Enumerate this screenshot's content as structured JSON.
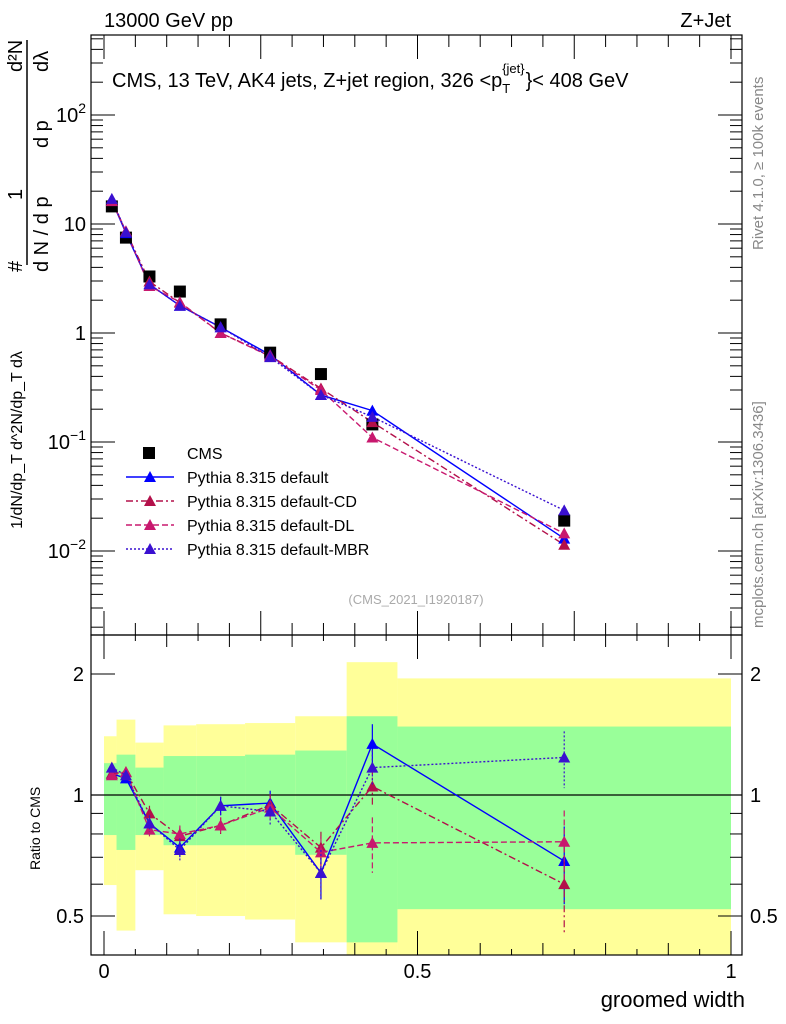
{
  "header": {
    "left": "13000 GeV pp",
    "right": "Z+Jet"
  },
  "side_labels": {
    "rivet": "Rivet 4.1.0, ≥ 100k events",
    "mcplots": "mcplots.cern.ch [arXiv:1306.3436]"
  },
  "analysis_id": "(CMS_2021_I1920187)",
  "chart_data": [
    {
      "type": "line",
      "title": "CMS, 13 TeV, AK4 jets, Z+jet region, 326 < p_T^{jet} < 408 GeV",
      "title_parts": {
        "main": "CMS, 13 TeV, AK4 jets, Z+jet region, 326 <p",
        "sub": "T",
        "sup": "{jet}",
        "tail": "}< 408 GeV"
      },
      "ylabel": "1/dN/dp_T d^2N/dp_T dλ",
      "ylabel_parts": {
        "num": "1",
        "den": "d N / d p",
        "num2": "d²N",
        "den2": "d p",
        "den2b": "dλ",
        "sub": "T",
        "hash": "#"
      },
      "yscale": "log",
      "ylim": [
        0.0017,
        540
      ],
      "xlim": [
        0,
        1
      ],
      "yticks": [
        {
          "v": 0.01,
          "base": "10",
          "exp": "−2"
        },
        {
          "v": 0.1,
          "base": "10",
          "exp": "−1"
        },
        {
          "v": 1,
          "base": "1",
          "exp": ""
        },
        {
          "v": 10,
          "base": "10",
          "exp": ""
        },
        {
          "v": 100,
          "base": "10",
          "exp": "2"
        }
      ],
      "x": [
        0.0125,
        0.035,
        0.0725,
        0.121,
        0.186,
        0.265,
        0.346,
        0.428,
        0.734
      ],
      "bin_edges": [
        0,
        0.02,
        0.05,
        0.095,
        0.147,
        0.225,
        0.305,
        0.387,
        0.468,
        1.0
      ],
      "legend_position": "bottom-left",
      "series": [
        {
          "name": "CMS",
          "color": "#000000",
          "style": "marker-square",
          "values": [
            14.5,
            7.5,
            3.3,
            2.4,
            1.2,
            0.66,
            0.42,
            0.145,
            0.019
          ]
        },
        {
          "name": "Pythia 8.315 default",
          "color": "#0000ff",
          "style": "solid",
          "values": [
            16.4,
            8.25,
            2.8,
            1.78,
            1.13,
            0.63,
            0.27,
            0.194,
            0.013
          ]
        },
        {
          "name": "Pythia 8.315 default-CD",
          "color": "#b3104a",
          "style": "dashdot",
          "values": [
            16.4,
            8.55,
            2.97,
            1.9,
            1.0,
            0.62,
            0.31,
            0.152,
            0.0114
          ]
        },
        {
          "name": "Pythia 8.315 default-DL",
          "color": "#c8186e",
          "style": "dashed",
          "values": [
            16.2,
            8.55,
            2.7,
            1.92,
            1.0,
            0.61,
            0.3,
            0.11,
            0.0145
          ]
        },
        {
          "name": "Pythia 8.315 default-MBR",
          "color": "#3a10d0",
          "style": "dotted",
          "values": [
            17.0,
            8.4,
            2.8,
            1.78,
            1.13,
            0.6,
            0.27,
            0.17,
            0.0236
          ]
        }
      ]
    },
    {
      "type": "line",
      "ylabel": "Ratio to CMS",
      "xlabel": "groomed width",
      "yscale": "log",
      "ylim": [
        0.4,
        2.5
      ],
      "xlim": [
        0,
        1
      ],
      "yticks": [
        {
          "v": 0.5,
          "label": "0.5"
        },
        {
          "v": 1,
          "label": "1"
        },
        {
          "v": 2,
          "label": "2"
        }
      ],
      "xticks": [
        {
          "v": 0,
          "label": "0"
        },
        {
          "v": 0.5,
          "label": "0.5"
        },
        {
          "v": 1,
          "label": "1"
        }
      ],
      "band_1sigma": {
        "color": "#99ff99",
        "lo": [
          0.795,
          0.73,
          0.795,
          0.75,
          0.75,
          0.75,
          0.71,
          0.43,
          0.52
        ],
        "hi": [
          1.2,
          1.26,
          1.17,
          1.25,
          1.25,
          1.26,
          1.29,
          1.57,
          1.48
        ]
      },
      "band_2sigma": {
        "color": "#ffff99",
        "lo": [
          0.597,
          0.46,
          0.65,
          0.505,
          0.5,
          0.49,
          0.43,
          0.4,
          0.4
        ],
        "hi": [
          1.4,
          1.54,
          1.35,
          1.49,
          1.5,
          1.51,
          1.57,
          2.14,
          1.95
        ]
      },
      "series": [
        {
          "name": "Pythia 8.315 default",
          "values": [
            1.13,
            1.1,
            0.85,
            0.74,
            0.94,
            0.955,
            0.64,
            1.34,
            0.685
          ],
          "err": [
            0.03,
            0.03,
            0.04,
            0.04,
            0.05,
            0.07,
            0.09,
            0.16,
            0.15
          ]
        },
        {
          "name": "Pythia 8.315 default-CD",
          "values": [
            1.13,
            1.14,
            0.9,
            0.79,
            0.84,
            0.945,
            0.74,
            1.05,
            0.6
          ],
          "err": [
            0.03,
            0.03,
            0.04,
            0.04,
            0.04,
            0.06,
            0.07,
            0.12,
            0.15
          ]
        },
        {
          "name": "Pythia 8.315 default-DL",
          "values": [
            1.12,
            1.14,
            0.82,
            0.8,
            0.84,
            0.93,
            0.72,
            0.76,
            0.765
          ],
          "err": [
            0.03,
            0.03,
            0.04,
            0.04,
            0.04,
            0.06,
            0.07,
            0.12,
            0.15
          ]
        },
        {
          "name": "Pythia 8.315 default-MBR",
          "values": [
            1.17,
            1.12,
            0.85,
            0.73,
            0.94,
            0.91,
            0.64,
            1.17,
            1.24
          ],
          "err": [
            0.03,
            0.03,
            0.04,
            0.05,
            0.05,
            0.07,
            0.09,
            0.12,
            0.2
          ]
        }
      ]
    }
  ]
}
